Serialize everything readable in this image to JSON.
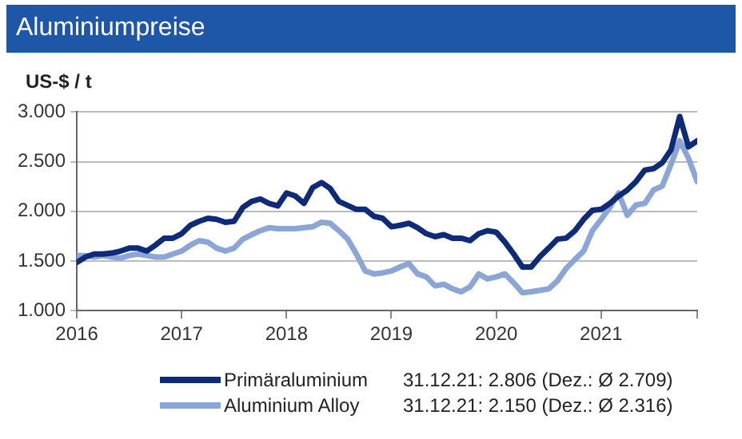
{
  "chart_data": {
    "type": "line",
    "title": "Aluminiumpreise",
    "ylabel": "US-$ / t",
    "x": [
      "2016-01",
      "2016-02",
      "2016-03",
      "2016-04",
      "2016-05",
      "2016-06",
      "2016-07",
      "2016-08",
      "2016-09",
      "2016-10",
      "2016-11",
      "2016-12",
      "2017-01",
      "2017-02",
      "2017-03",
      "2017-04",
      "2017-05",
      "2017-06",
      "2017-07",
      "2017-08",
      "2017-09",
      "2017-10",
      "2017-11",
      "2017-12",
      "2018-01",
      "2018-02",
      "2018-03",
      "2018-04",
      "2018-05",
      "2018-06",
      "2018-07",
      "2018-08",
      "2018-09",
      "2018-10",
      "2018-11",
      "2018-12",
      "2019-01",
      "2019-02",
      "2019-03",
      "2019-04",
      "2019-05",
      "2019-06",
      "2019-07",
      "2019-08",
      "2019-09",
      "2019-10",
      "2019-11",
      "2019-12",
      "2020-01",
      "2020-02",
      "2020-03",
      "2020-04",
      "2020-05",
      "2020-06",
      "2020-07",
      "2020-08",
      "2020-09",
      "2020-10",
      "2020-11",
      "2020-12",
      "2021-01",
      "2021-02",
      "2021-03",
      "2021-04",
      "2021-05",
      "2021-06",
      "2021-07",
      "2021-08",
      "2021-09",
      "2021-10",
      "2021-11",
      "2021-12"
    ],
    "series": [
      {
        "name": "Primäraluminium",
        "color": "#0d2b78",
        "values": [
          1485,
          1540,
          1570,
          1570,
          1580,
          1600,
          1630,
          1630,
          1600,
          1660,
          1730,
          1730,
          1775,
          1860,
          1900,
          1930,
          1920,
          1890,
          1900,
          2040,
          2100,
          2125,
          2080,
          2055,
          2185,
          2155,
          2080,
          2240,
          2290,
          2230,
          2100,
          2060,
          2020,
          2020,
          1950,
          1930,
          1845,
          1860,
          1880,
          1835,
          1775,
          1745,
          1765,
          1730,
          1730,
          1705,
          1775,
          1805,
          1790,
          1690,
          1570,
          1440,
          1440,
          1545,
          1630,
          1720,
          1730,
          1805,
          1920,
          2010,
          2020,
          2080,
          2155,
          2215,
          2300,
          2415,
          2430,
          2490,
          2620,
          2955,
          2650,
          2710
        ]
      },
      {
        "name": "Aluminium Alloy",
        "color": "#8ba6d6",
        "values": [
          1555,
          1555,
          1540,
          1555,
          1540,
          1530,
          1555,
          1570,
          1555,
          1540,
          1540,
          1570,
          1600,
          1660,
          1705,
          1690,
          1630,
          1600,
          1630,
          1720,
          1765,
          1805,
          1835,
          1825,
          1825,
          1825,
          1835,
          1845,
          1890,
          1880,
          1805,
          1720,
          1570,
          1400,
          1370,
          1380,
          1400,
          1440,
          1475,
          1370,
          1340,
          1250,
          1265,
          1220,
          1190,
          1240,
          1370,
          1320,
          1340,
          1370,
          1280,
          1180,
          1190,
          1205,
          1220,
          1300,
          1425,
          1515,
          1600,
          1805,
          1920,
          2040,
          2185,
          1960,
          2065,
          2080,
          2215,
          2255,
          2475,
          2710,
          2535,
          2300
        ]
      }
    ],
    "xlim": [
      "2016-01",
      "2021-12"
    ],
    "xticks": [
      {
        "value": "2016-01",
        "label": "2016"
      },
      {
        "value": "2017-01",
        "label": "2017"
      },
      {
        "value": "2018-01",
        "label": "2018"
      },
      {
        "value": "2019-01",
        "label": "2019"
      },
      {
        "value": "2020-01",
        "label": "2020"
      },
      {
        "value": "2021-01",
        "label": "2021"
      },
      {
        "value": "2021-12",
        "label": null
      }
    ],
    "ylim": [
      1000,
      3000
    ],
    "yticks": [
      {
        "value": 1000,
        "label": "1.000"
      },
      {
        "value": 1500,
        "label": "1.500"
      },
      {
        "value": 2000,
        "label": "2.000"
      },
      {
        "value": 2500,
        "label": "2.500"
      },
      {
        "value": 3000,
        "label": "3.000"
      }
    ],
    "grid": "y",
    "legend": "bottom",
    "marker": "none",
    "line_style": "solid",
    "annotations": [
      "31.12.21: 2.806 (Dez.: Ø 2.709)",
      "31.12.21: 2.150 (Dez.: Ø 2.316)"
    ]
  }
}
